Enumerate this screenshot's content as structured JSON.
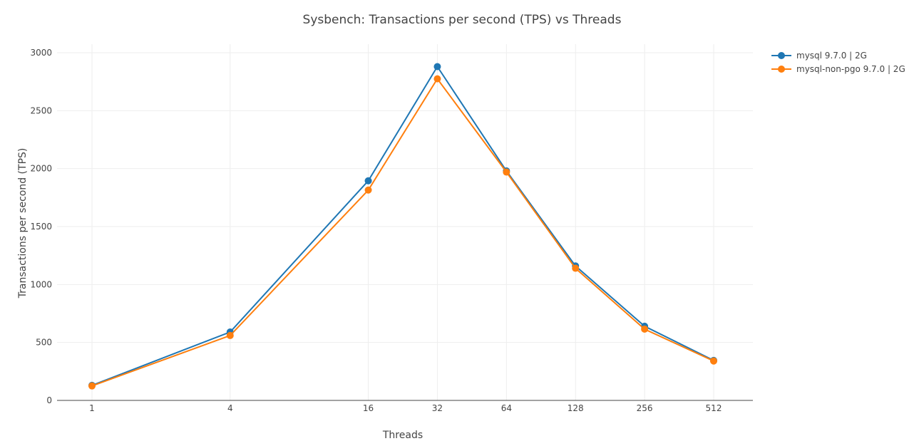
{
  "chart_data": {
    "type": "line",
    "title": "Sysbench: Transactions per second (TPS) vs Threads",
    "xlabel": "Threads",
    "ylabel": "Transactions per second (TPS)",
    "x_scale": "log2",
    "x": [
      1,
      4,
      16,
      32,
      64,
      128,
      256,
      512
    ],
    "x_tick_labels": [
      "1",
      "4",
      "16",
      "32",
      "64",
      "128",
      "256",
      "512"
    ],
    "ylim": [
      0,
      3000
    ],
    "y_ticks": [
      0,
      500,
      1000,
      1500,
      2000,
      2500,
      3000
    ],
    "y_tick_labels": [
      "0",
      "500",
      "1000",
      "1500",
      "2000",
      "2500",
      "3000"
    ],
    "grid": true,
    "legend_position": "top-right",
    "series": [
      {
        "name": "mysql 9.7.0 | 2G",
        "color": "#1f77b4",
        "values": [
          130,
          590,
          1895,
          2880,
          1980,
          1160,
          640,
          345
        ]
      },
      {
        "name": "mysql-non-pgo 9.7.0 | 2G",
        "color": "#ff7f0e",
        "values": [
          125,
          560,
          1815,
          2775,
          1970,
          1140,
          615,
          340
        ]
      }
    ]
  }
}
